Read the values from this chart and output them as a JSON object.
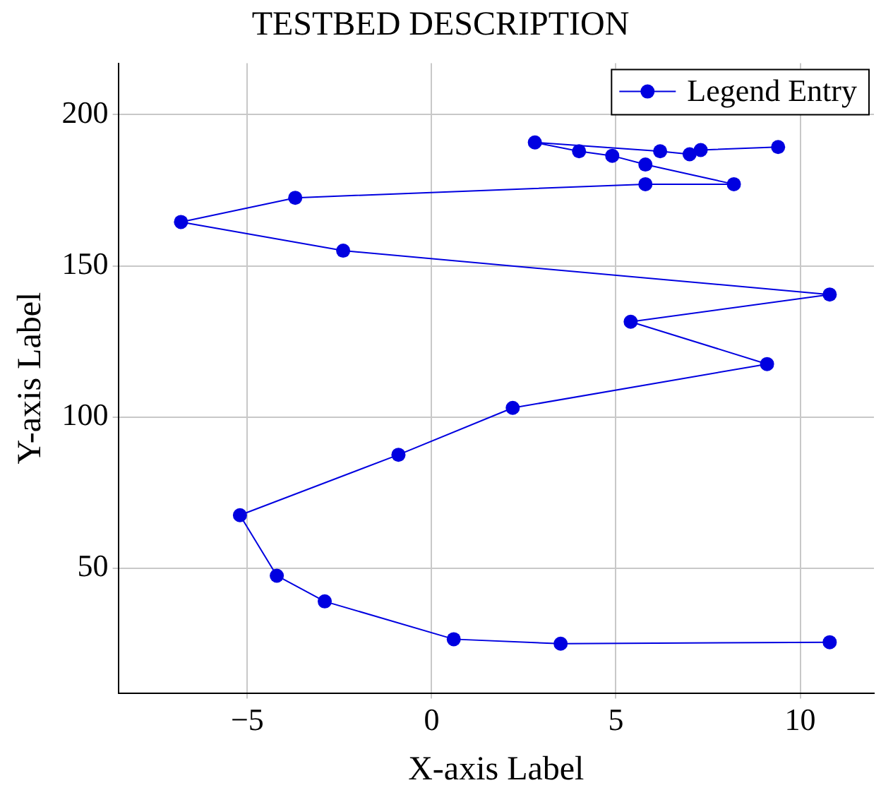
{
  "chart_data": {
    "type": "line",
    "title": "TESTBED DESCRIPTION",
    "xlabel": "X-axis Label",
    "ylabel": "Y-axis Label",
    "xlim": [
      -8.5,
      12
    ],
    "ylim": [
      8.7,
      217
    ],
    "xticks": [
      {
        "value": -5,
        "label": "−5"
      },
      0,
      5,
      10
    ],
    "yticks": [
      50,
      100,
      150,
      200
    ],
    "grid": true,
    "legend": "top right",
    "marker": "circle",
    "line_style": "solid",
    "series": [
      {
        "name": "Legend Entry",
        "color": "#0000e0",
        "x": [
          10.8,
          3.5,
          0.6,
          -2.9,
          -4.2,
          -5.2,
          -0.9,
          2.2,
          9.1,
          5.4,
          10.8,
          -2.4,
          -6.8,
          -3.7,
          5.8,
          8.2,
          5.8,
          4.9,
          4.0,
          2.8,
          6.2,
          7.0,
          7.3,
          9.4
        ],
        "values": [
          25.5,
          25,
          26.5,
          39,
          47.5,
          67.5,
          87.5,
          103,
          117.5,
          131.5,
          140.5,
          155,
          164.5,
          172.5,
          177,
          177,
          183.5,
          186.4,
          187.9,
          190.8,
          187.9,
          186.9,
          188.3,
          189.3
        ]
      }
    ]
  }
}
